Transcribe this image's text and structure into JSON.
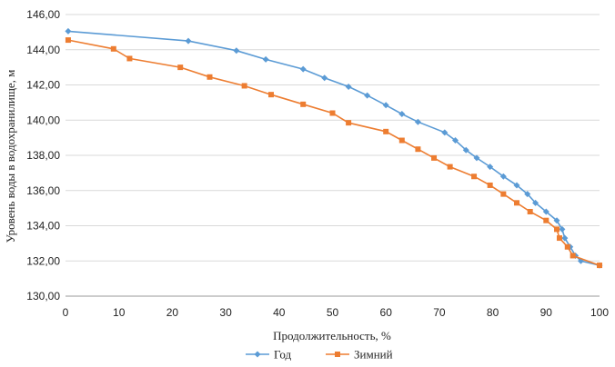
{
  "chart_data": {
    "type": "line",
    "title": "",
    "xlabel": "Продолжительность, %",
    "ylabel": "Уровень воды в водохранилище, м",
    "xlim": [
      0,
      100
    ],
    "ylim": [
      130,
      146
    ],
    "x_ticks": [
      "0",
      "10",
      "20",
      "30",
      "40",
      "50",
      "60",
      "70",
      "80",
      "90",
      "100"
    ],
    "y_ticks": [
      "130,00",
      "132,00",
      "134,00",
      "136,00",
      "138,00",
      "140,00",
      "142,00",
      "144,00",
      "146,00"
    ],
    "grid": {
      "x": false,
      "y": true
    },
    "legend": "bottom",
    "series": [
      {
        "name": "Год",
        "color": "#5b9bd5",
        "marker": "diamond",
        "x": [
          0.5,
          23,
          32,
          37.5,
          44.5,
          48.5,
          53,
          56.5,
          60,
          63,
          66,
          71,
          73,
          75,
          77,
          79.5,
          82,
          84.5,
          86.5,
          88,
          90,
          92,
          93,
          93.5,
          94.5,
          95.5,
          96.5,
          100
        ],
        "y": [
          145.05,
          144.5,
          143.95,
          143.45,
          142.9,
          142.4,
          141.9,
          141.4,
          140.85,
          140.35,
          139.9,
          139.3,
          138.85,
          138.3,
          137.85,
          137.35,
          136.8,
          136.3,
          135.8,
          135.3,
          134.8,
          134.3,
          133.8,
          133.3,
          132.8,
          132.3,
          132.0,
          131.75
        ]
      },
      {
        "name": "Зимний",
        "color": "#ed7d31",
        "marker": "square",
        "x": [
          0.5,
          9,
          12,
          21.5,
          27,
          33.5,
          38.5,
          44.5,
          50,
          53,
          60,
          63,
          66,
          69,
          72,
          76.5,
          79.5,
          82,
          84.5,
          87,
          90,
          92,
          92.5,
          94,
          95,
          100
        ],
        "y": [
          144.55,
          144.05,
          143.5,
          143.0,
          142.45,
          141.95,
          141.45,
          140.9,
          140.4,
          139.85,
          139.35,
          138.85,
          138.35,
          137.85,
          137.35,
          136.8,
          136.3,
          135.8,
          135.3,
          134.8,
          134.3,
          133.8,
          133.3,
          132.8,
          132.3,
          131.75
        ]
      }
    ]
  }
}
